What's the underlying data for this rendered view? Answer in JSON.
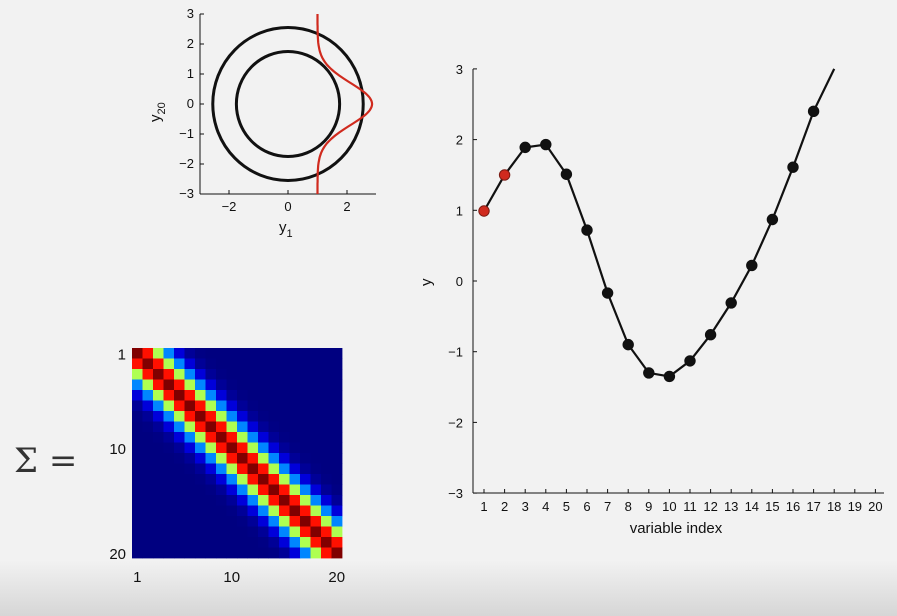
{
  "chart_data": [
    {
      "type": "line",
      "id": "scatter_circle",
      "xlabel": "y",
      "xlabel_sub": "1",
      "ylabel": "y",
      "ylabel_sub": "20",
      "xlim": [
        -3,
        3
      ],
      "ylim": [
        -3,
        3
      ],
      "xticks": [
        -2,
        0,
        2
      ],
      "yticks": [
        3,
        2,
        1,
        0,
        -1,
        -2,
        -3
      ],
      "circle_radii": [
        1.75,
        2.55
      ],
      "conditional_curve": {
        "x_offset": 1.0,
        "mean": 0.0,
        "std": 0.7,
        "peak": 2.85
      },
      "curve_color": "#d02a1e",
      "circle_color": "#111111"
    },
    {
      "type": "line",
      "id": "sample_function",
      "xlabel": "variable index",
      "ylabel": "y",
      "ylim": [
        -3,
        3
      ],
      "yticks": [
        3,
        2,
        1,
        0,
        -1,
        -2,
        -3
      ],
      "xtick_labels": [
        "1",
        "2",
        "3",
        "4",
        "5",
        "6",
        "7",
        "8",
        "9",
        "10",
        "11",
        "12",
        "13",
        "14",
        "15",
        "16",
        "17",
        "18",
        "19",
        "20"
      ],
      "x": [
        1,
        2,
        3,
        4,
        5,
        6,
        7,
        8,
        9,
        10,
        11,
        12,
        13,
        14,
        15,
        16,
        17
      ],
      "y": [
        0.99,
        1.5,
        1.89,
        1.93,
        1.51,
        0.72,
        -0.17,
        -0.9,
        -1.3,
        -1.35,
        -1.13,
        -0.76,
        -0.31,
        0.22,
        0.87,
        1.61,
        2.4
      ],
      "line_end": {
        "x": 18.0,
        "y": 3.0
      },
      "highlighted_indices": [
        1,
        2
      ],
      "highlight_color": "#d02a1e",
      "point_color": "#111111"
    },
    {
      "type": "heatmap",
      "id": "covariance",
      "label": "Σ =",
      "size": 20,
      "row_tick_labels": [
        "1",
        "10",
        "20"
      ],
      "col_tick_labels": [
        "1",
        "10",
        "20"
      ],
      "colormap": "jet",
      "bandwidth": 4
    }
  ]
}
